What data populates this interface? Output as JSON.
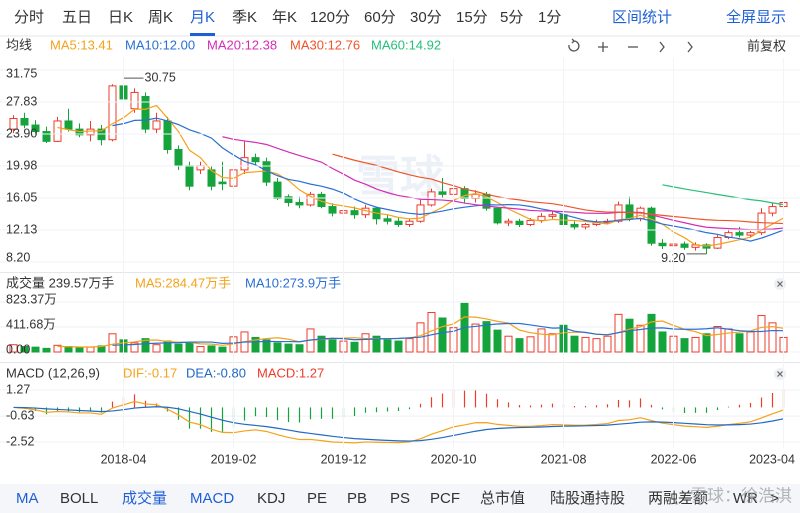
{
  "period_tabs": [
    "分时",
    "五日",
    "日K",
    "周K",
    "月K",
    "季K",
    "年K",
    "120分",
    "60分",
    "30分",
    "15分",
    "5分",
    "1分"
  ],
  "toolbar": {
    "stats": "区间统计",
    "fullscreen": "全屏显示",
    "adjust": "前复权"
  },
  "indicator_tabs": [
    "MA",
    "BOLL",
    "成交量",
    "MACD",
    "KDJ",
    "PE",
    "PB",
    "PS",
    "PCF",
    "总市值",
    "陆股通持股",
    "两融差额",
    "WR",
    ">"
  ],
  "watermark_logo": "雪球",
  "watermark": "雪球：徐浩淇",
  "chart_data": [
    {
      "type": "candlestick",
      "legend_title": "均线",
      "x": [
        "2017-06",
        "2017-07",
        "2017-08",
        "2017-09",
        "2017-10",
        "2017-11",
        "2017-12",
        "2018-01",
        "2018-02",
        "2018-03",
        "2018-04",
        "2018-05",
        "2018-06",
        "2018-07",
        "2018-08",
        "2018-09",
        "2018-10",
        "2018-11",
        "2018-12",
        "2019-01",
        "2019-02",
        "2019-03",
        "2019-04",
        "2019-05",
        "2019-06",
        "2019-07",
        "2019-08",
        "2019-09",
        "2019-10",
        "2019-11",
        "2019-12",
        "2020-01",
        "2020-02",
        "2020-03",
        "2020-04",
        "2020-05",
        "2020-06",
        "2020-07",
        "2020-08",
        "2020-09",
        "2020-10",
        "2020-11",
        "2020-12",
        "2021-01",
        "2021-02",
        "2021-03",
        "2021-04",
        "2021-05",
        "2021-06",
        "2021-07",
        "2021-08",
        "2021-09",
        "2021-10",
        "2021-11",
        "2021-12",
        "2022-01",
        "2022-02",
        "2022-03",
        "2022-04",
        "2022-05",
        "2022-06",
        "2022-07",
        "2022-08",
        "2022-09",
        "2022-10",
        "2022-11",
        "2022-12",
        "2023-01",
        "2023-02",
        "2023-03",
        "2023-04"
      ],
      "xticks": [
        "2018-04",
        "2019-02",
        "2019-12",
        "2020-10",
        "2021-08",
        "2022-06",
        "2023-04"
      ],
      "open": [
        24.5,
        25.8,
        25.0,
        24.2,
        23.0,
        25.5,
        24.5,
        23.8,
        24.5,
        23.2,
        29.8,
        27.0,
        28.5,
        24.5,
        25.5,
        22.0,
        20.0,
        19.5,
        19.5,
        18.0,
        17.5,
        19.5,
        21.0,
        20.5,
        18.0,
        16.2,
        15.5,
        15.2,
        16.5,
        15.0,
        14.2,
        14.5,
        14.0,
        14.8,
        13.5,
        13.2,
        12.8,
        13.2,
        15.2,
        16.8,
        16.5,
        17.2,
        16.0,
        16.5,
        14.8,
        13.0,
        13.2,
        12.8,
        13.3,
        13.8,
        14.0,
        12.8,
        12.5,
        12.8,
        13.0,
        13.2,
        15.2,
        13.5,
        14.8,
        10.5,
        10.2,
        10.4,
        10.0,
        10.3,
        9.9,
        11.2,
        11.8,
        11.5,
        11.8,
        14.2,
        15.0
      ],
      "close": [
        25.8,
        25.0,
        24.2,
        23.0,
        25.5,
        24.5,
        23.8,
        24.5,
        23.2,
        29.8,
        28.2,
        29.0,
        24.5,
        25.5,
        22.0,
        20.0,
        17.5,
        20.0,
        17.5,
        17.8,
        19.5,
        21.0,
        20.5,
        18.0,
        16.0,
        15.5,
        15.2,
        16.5,
        15.0,
        14.2,
        14.5,
        14.0,
        14.8,
        13.5,
        13.2,
        12.8,
        13.2,
        15.2,
        16.8,
        16.5,
        17.2,
        16.0,
        16.5,
        14.8,
        13.0,
        13.2,
        12.8,
        13.3,
        13.8,
        14.0,
        12.8,
        12.5,
        12.8,
        13.0,
        13.2,
        15.2,
        13.5,
        14.8,
        10.5,
        10.2,
        10.4,
        10.0,
        10.3,
        9.9,
        11.2,
        11.8,
        11.5,
        11.8,
        14.2,
        15.0,
        15.5
      ],
      "high": [
        26.2,
        26.5,
        25.6,
        24.8,
        26.0,
        27.0,
        25.2,
        25.5,
        25.0,
        30.0,
        30.75,
        29.5,
        29.0,
        26.5,
        26.0,
        22.5,
        20.5,
        20.5,
        20.0,
        20.5,
        20.0,
        23.0,
        21.5,
        21.0,
        18.5,
        16.5,
        16.2,
        16.8,
        16.8,
        15.4,
        14.8,
        15.0,
        15.2,
        15.0,
        14.0,
        13.6,
        13.5,
        15.8,
        17.2,
        18.5,
        17.8,
        17.5,
        17.0,
        16.8,
        15.0,
        13.5,
        13.5,
        13.6,
        14.2,
        14.5,
        14.2,
        13.2,
        13.0,
        13.4,
        13.5,
        15.6,
        16.2,
        15.0,
        15.0,
        11.0,
        10.8,
        10.7,
        10.6,
        10.5,
        11.5,
        12.2,
        12.5,
        12.0,
        14.8,
        15.5,
        17.2
      ],
      "low": [
        24.0,
        24.6,
        23.8,
        22.8,
        22.9,
        24.2,
        23.5,
        23.0,
        22.5,
        23.0,
        27.5,
        26.5,
        24.0,
        24.0,
        21.5,
        19.5,
        17.0,
        19.0,
        17.0,
        17.0,
        17.2,
        19.0,
        20.0,
        17.5,
        15.8,
        15.0,
        14.8,
        15.0,
        14.8,
        13.8,
        13.8,
        13.5,
        13.6,
        12.8,
        12.8,
        12.5,
        12.5,
        13.0,
        15.0,
        16.0,
        16.2,
        15.5,
        15.5,
        14.5,
        12.8,
        12.6,
        12.5,
        12.6,
        13.0,
        13.5,
        12.5,
        12.2,
        12.2,
        12.6,
        12.8,
        13.0,
        13.2,
        13.2,
        10.2,
        9.8,
        9.5,
        9.7,
        9.6,
        9.2,
        9.8,
        11.0,
        11.2,
        11.2,
        11.5,
        13.8,
        14.8
      ],
      "up_color": "#ee3b2c",
      "down_color": "#15a33c",
      "ylim": [
        8.2,
        31.75
      ],
      "yticks": [
        {
          "value": 8.2,
          "label": "8.20"
        },
        12.13,
        16.05,
        19.98,
        {
          "value": 23.9,
          "label": "23.90"
        },
        27.83,
        31.75
      ],
      "grid": true,
      "ma": [
        {
          "name": "MA5:13.41",
          "period": 5,
          "color": "#f5a21b"
        },
        {
          "name": "MA10:12.00",
          "period": 10,
          "color": "#2a6fd6"
        },
        {
          "name": "MA20:12.38",
          "period": 20,
          "color": "#d42db4"
        },
        {
          "name": "MA30:12.76",
          "period": 30,
          "color": "#f0542a"
        },
        {
          "name": "MA60:14.92",
          "period": 60,
          "color": "#25c07a"
        }
      ],
      "annotations": [
        {
          "label": "30.75"
        },
        {
          "label": "9.20"
        }
      ]
    },
    {
      "type": "bar",
      "title": "成交量 239.57万手",
      "values": [
        120,
        90,
        80,
        60,
        110,
        90,
        70,
        80,
        100,
        300,
        200,
        150,
        220,
        120,
        180,
        130,
        150,
        90,
        100,
        80,
        250,
        330,
        240,
        200,
        150,
        130,
        120,
        380,
        260,
        200,
        180,
        160,
        300,
        260,
        200,
        180,
        220,
        480,
        650,
        560,
        400,
        800,
        460,
        500,
        360,
        260,
        220,
        250,
        380,
        300,
        440,
        260,
        240,
        220,
        260,
        620,
        540,
        440,
        620,
        330,
        260,
        220,
        240,
        300,
        420,
        380,
        300,
        330,
        600,
        480,
        240
      ],
      "ylim": [
        0,
        823.37
      ],
      "yticks": [
        {
          "value": 0,
          "label": "0.00"
        },
        {
          "value": 411.68,
          "label": "411.68万"
        },
        {
          "value": 823.37,
          "label": "823.37万"
        }
      ],
      "ma": [
        {
          "name": "MA5:284.47万手",
          "period": 5,
          "color": "#f5a21b"
        },
        {
          "name": "MA10:273.9万手",
          "period": 10,
          "color": "#2a6fd6"
        }
      ]
    },
    {
      "type": "macd",
      "title": "MACD (12,26,9)",
      "params": [
        12,
        26,
        9
      ],
      "series": [
        {
          "name": "DIF:-0.17",
          "color": "#f5a21b"
        },
        {
          "name": "DEA:-0.80",
          "color": "#2169c4"
        },
        {
          "name": "MACD:1.27",
          "color": "#ee3b2c"
        }
      ],
      "ylim": [
        -2.52,
        1.27
      ],
      "yticks": [
        -2.52,
        -0.63,
        1.27
      ]
    }
  ]
}
